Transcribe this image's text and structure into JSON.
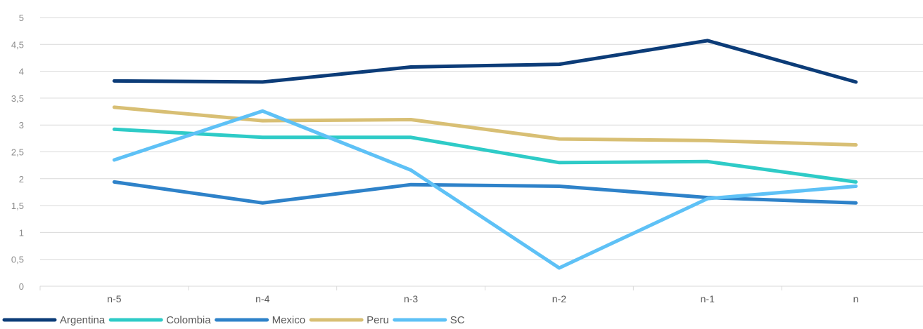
{
  "chart_data": {
    "type": "line",
    "title": "",
    "xlabel": "",
    "ylabel": "",
    "categories": [
      "n-5",
      "n-4",
      "n-3",
      "n-2",
      "n-1",
      "n"
    ],
    "ylim": [
      0,
      5
    ],
    "yticks": [
      "0",
      "0,5",
      "1",
      "1,5",
      "2",
      "2,5",
      "3",
      "3,5",
      "4",
      "4,5",
      "5"
    ],
    "grid": true,
    "legend_position": "bottom-left",
    "series": [
      {
        "name": "Argentina",
        "color": "#0c3c78",
        "values": [
          3.82,
          3.8,
          4.08,
          4.13,
          4.57,
          3.8
        ]
      },
      {
        "name": "Colombia",
        "color": "#2ecbc7",
        "values": [
          2.92,
          2.77,
          2.77,
          2.3,
          2.32,
          1.94
        ]
      },
      {
        "name": "Mexico",
        "color": "#2e82c9",
        "values": [
          1.94,
          1.55,
          1.89,
          1.86,
          1.65,
          1.55
        ]
      },
      {
        "name": "Peru",
        "color": "#d8bf74",
        "values": [
          3.33,
          3.08,
          3.1,
          2.74,
          2.71,
          2.63
        ]
      },
      {
        "name": "SC",
        "color": "#5ec1f6",
        "values": [
          2.35,
          3.26,
          2.16,
          0.34,
          1.63,
          1.86
        ]
      }
    ]
  }
}
